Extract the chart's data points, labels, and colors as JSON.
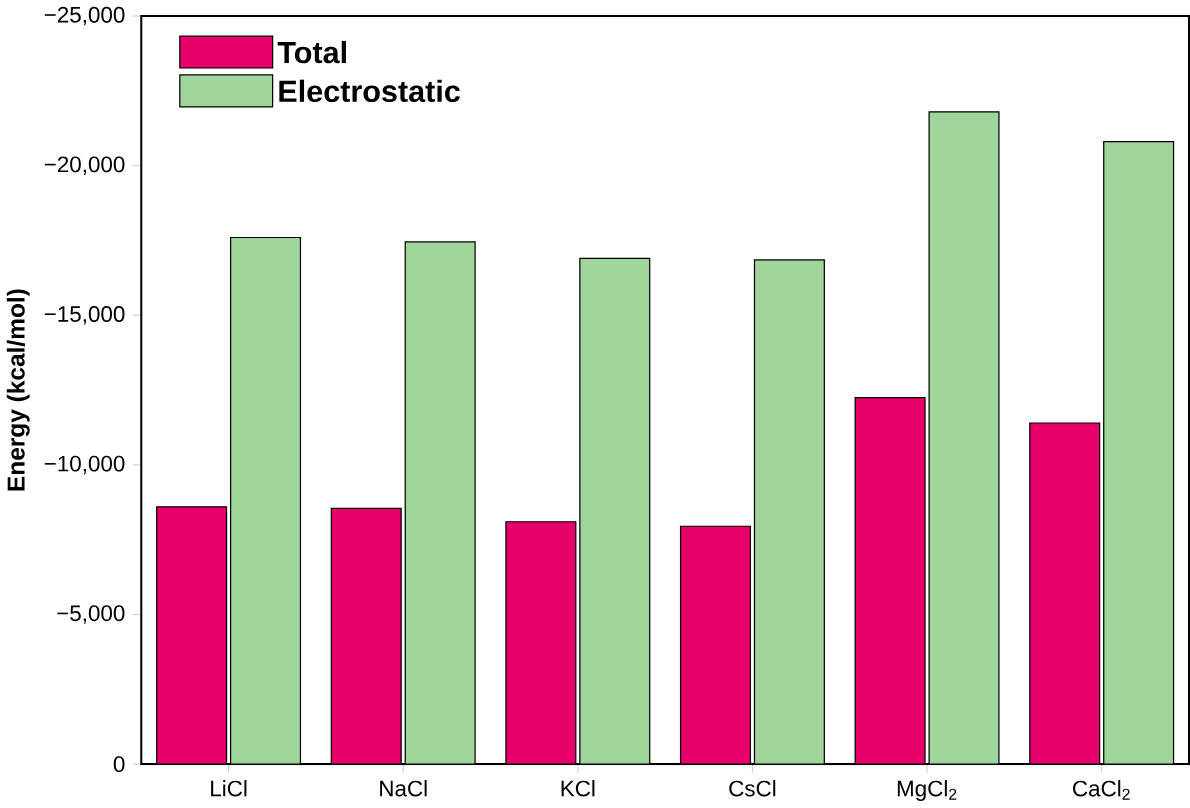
{
  "chart_data": {
    "type": "bar",
    "ylabel": "Energy (kcal/mol)",
    "categories": [
      "LiCl",
      "NaCl",
      "KCl",
      "CsCl",
      "MgCl$_{2}$",
      "CaCl$_{2}$"
    ],
    "series": [
      {
        "name": "Total",
        "color": "#e8006a",
        "values": [
          -8600,
          -8550,
          -8100,
          -7950,
          -12250,
          -11400
        ]
      },
      {
        "name": "Electrostatic",
        "color": "#9fd49a",
        "values": [
          -17600,
          -17450,
          -16900,
          -16850,
          -21800,
          -20800
        ]
      }
    ],
    "ylim": [
      0,
      -25000
    ],
    "yticks": [
      0,
      {
        "value": -5000,
        "label": "−5,000"
      },
      {
        "value": -10000,
        "label": "−10,000"
      },
      {
        "value": -15000,
        "label": "−15,000"
      },
      {
        "value": -20000,
        "label": "−20,000"
      },
      {
        "value": -25000,
        "label": "−25,000"
      }
    ],
    "legend": "top left",
    "grid": false
  }
}
